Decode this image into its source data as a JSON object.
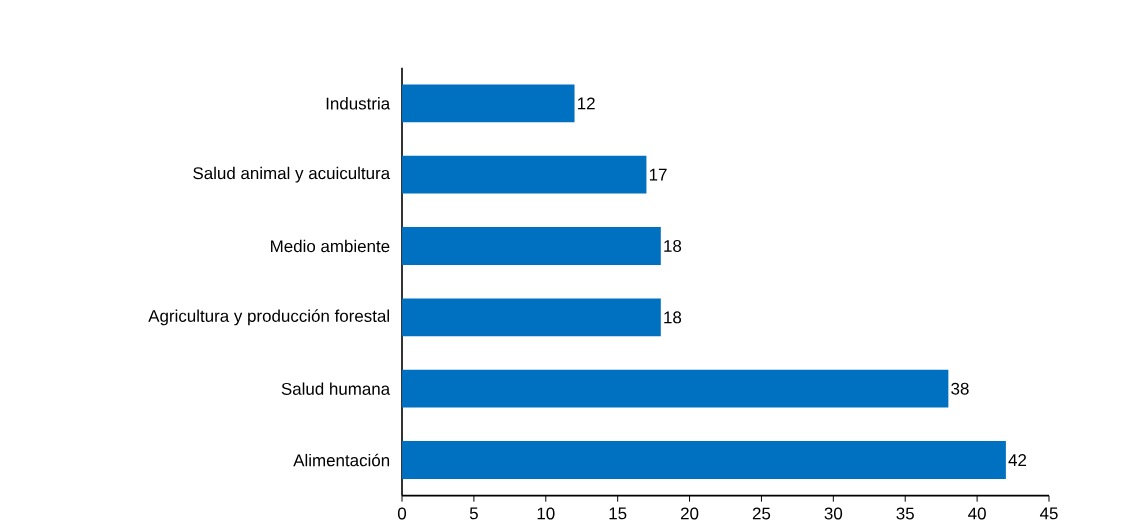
{
  "chart_data": {
    "type": "bar",
    "orientation": "horizontal",
    "categories": [
      "Industria",
      "Salud animal y acuicultura",
      "Medio ambiente",
      "Agricultura y producción forestal",
      "Salud humana",
      "Alimentación"
    ],
    "values": [
      12,
      17,
      18,
      18,
      38,
      42
    ],
    "color": "#0070c0",
    "xlim": [
      0,
      45
    ],
    "xticks": [
      0,
      5,
      10,
      15,
      20,
      25,
      30,
      35,
      40,
      45
    ],
    "data_labels": true
  }
}
